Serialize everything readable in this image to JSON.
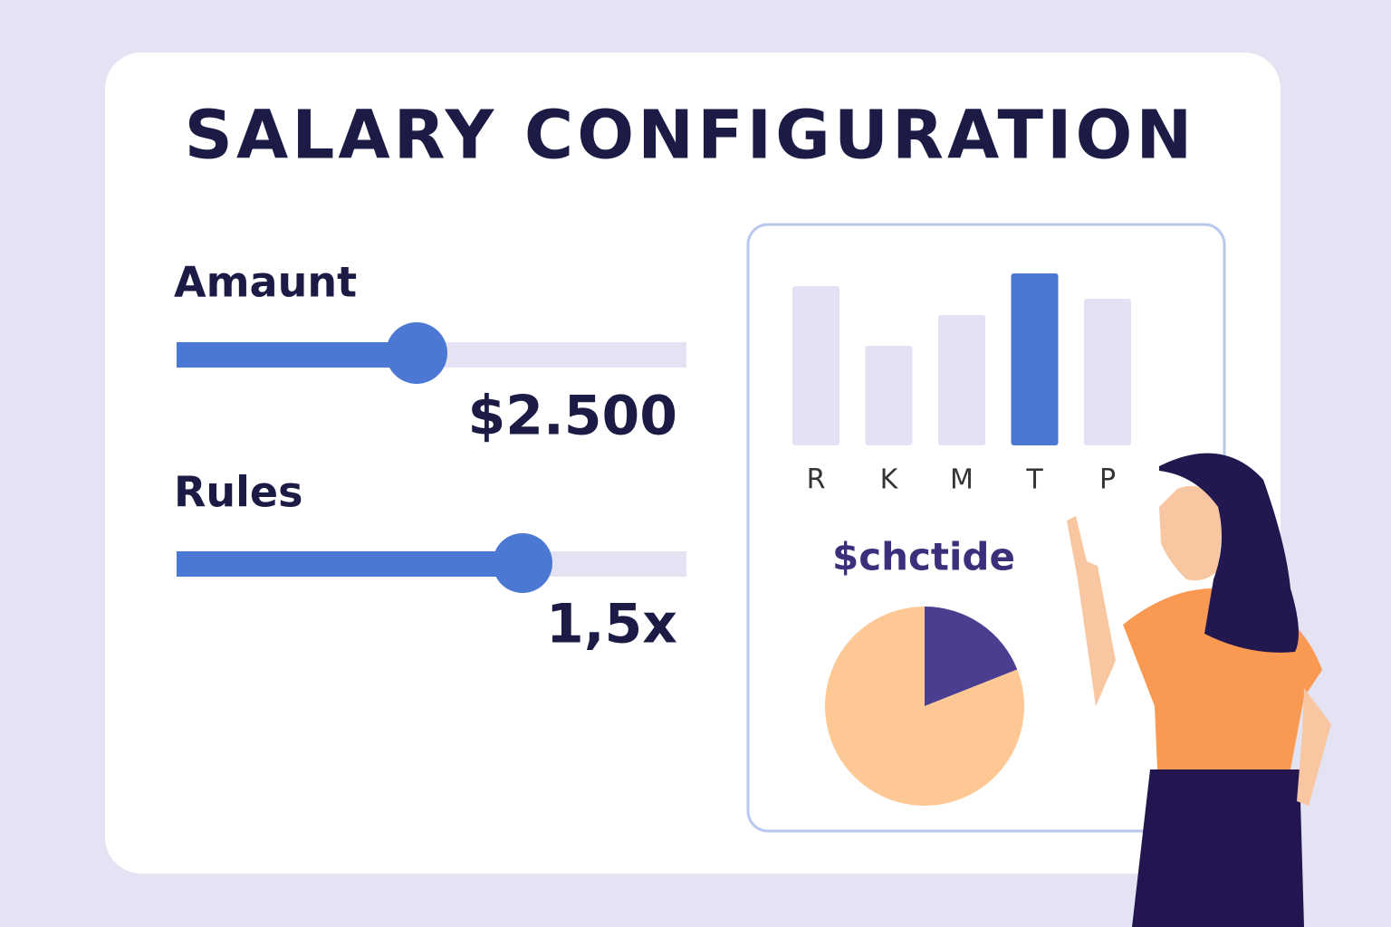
{
  "header": {
    "title": "SALARY CONFIGURATION"
  },
  "controls": [
    {
      "label": "Amaunt",
      "value": "$2.500"
    },
    {
      "label": "Rules",
      "value": "1,5x"
    }
  ],
  "panel": {
    "bar_chart": {
      "type": "bar",
      "categories": [
        "R",
        "K",
        "M",
        "T",
        "P"
      ],
      "values": [
        88,
        55,
        72,
        95,
        81
      ],
      "colors": [
        "#e2e2f4",
        "#e2e2f4",
        "#e2e2f4",
        "#4a78d2",
        "#e2e2f4"
      ]
    },
    "pie_chart": {
      "type": "pie",
      "title": "$chctide",
      "values": [
        19,
        81
      ],
      "colors": [
        "#4b3d8f",
        "#fdc894"
      ]
    }
  }
}
